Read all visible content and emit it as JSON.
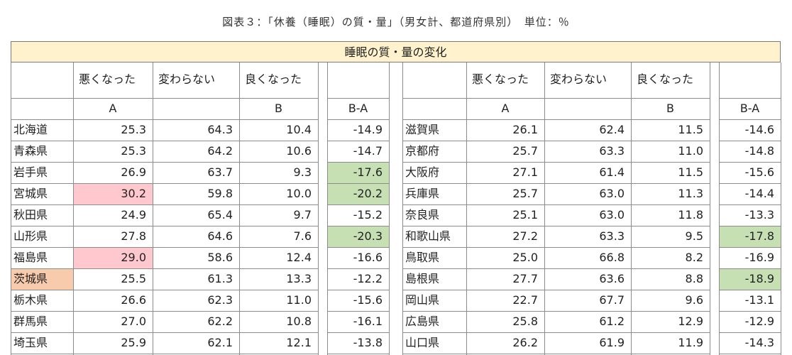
{
  "caption": "図表３：「休養（睡眠）の質・量」（男女計、都道府県別）　単位：％",
  "banner": "睡眠の質・量の変化",
  "headers": {
    "worse": "悪くなった",
    "same": "変わらない",
    "better": "良くなった",
    "a": "A",
    "b": "B",
    "ba": "B-A"
  },
  "left_rows": [
    {
      "pref": "北海道",
      "a": "25.3",
      "same": "64.3",
      "b": "10.4",
      "ba": "-14.9"
    },
    {
      "pref": "青森県",
      "a": "25.3",
      "same": "64.2",
      "b": "10.6",
      "ba": "-14.7"
    },
    {
      "pref": "岩手県",
      "a": "26.9",
      "same": "63.7",
      "b": "9.3",
      "ba": "-17.6"
    },
    {
      "pref": "宮城県",
      "a": "30.2",
      "same": "59.8",
      "b": "10.0",
      "ba": "-20.2"
    },
    {
      "pref": "秋田県",
      "a": "24.9",
      "same": "65.4",
      "b": "9.7",
      "ba": "-15.2"
    },
    {
      "pref": "山形県",
      "a": "27.8",
      "same": "64.6",
      "b": "7.6",
      "ba": "-20.3"
    },
    {
      "pref": "福島県",
      "a": "29.0",
      "same": "58.6",
      "b": "12.4",
      "ba": "-16.6"
    },
    {
      "pref": "茨城県",
      "a": "25.5",
      "same": "61.3",
      "b": "13.3",
      "ba": "-12.2"
    },
    {
      "pref": "栃木県",
      "a": "26.6",
      "same": "62.3",
      "b": "11.0",
      "ba": "-15.6"
    },
    {
      "pref": "群馬県",
      "a": "27.0",
      "same": "62.2",
      "b": "10.8",
      "ba": "-16.1"
    },
    {
      "pref": "埼玉県",
      "a": "25.9",
      "same": "62.1",
      "b": "12.1",
      "ba": "-13.8"
    }
  ],
  "right_rows": [
    {
      "pref": "滋賀県",
      "a": "26.1",
      "same": "62.4",
      "b": "11.5",
      "ba": "-14.6"
    },
    {
      "pref": "京都府",
      "a": "25.7",
      "same": "63.3",
      "b": "11.0",
      "ba": "-14.8"
    },
    {
      "pref": "大阪府",
      "a": "27.1",
      "same": "61.4",
      "b": "11.5",
      "ba": "-15.6"
    },
    {
      "pref": "兵庫県",
      "a": "25.7",
      "same": "63.0",
      "b": "11.3",
      "ba": "-14.4"
    },
    {
      "pref": "奈良県",
      "a": "25.1",
      "same": "63.0",
      "b": "11.8",
      "ba": "-13.3"
    },
    {
      "pref": "和歌山県",
      "a": "27.2",
      "same": "63.3",
      "b": "9.5",
      "ba": "-17.8"
    },
    {
      "pref": "鳥取県",
      "a": "25.0",
      "same": "66.8",
      "b": "8.2",
      "ba": "-16.9"
    },
    {
      "pref": "島根県",
      "a": "27.7",
      "same": "63.6",
      "b": "8.8",
      "ba": "-18.9"
    },
    {
      "pref": "岡山県",
      "a": "22.7",
      "same": "67.7",
      "b": "9.6",
      "ba": "-13.1"
    },
    {
      "pref": "広島県",
      "a": "25.8",
      "same": "61.2",
      "b": "12.9",
      "ba": "-12.9"
    },
    {
      "pref": "山口県",
      "a": "26.2",
      "same": "61.9",
      "b": "11.9",
      "ba": "-14.3"
    }
  ],
  "highlights": {
    "left": [
      {
        "row": 3,
        "col": "a",
        "tone": "red"
      },
      {
        "row": 6,
        "col": "a",
        "tone": "red"
      },
      {
        "row": 2,
        "col": "ba",
        "tone": "green"
      },
      {
        "row": 3,
        "col": "ba",
        "tone": "green"
      },
      {
        "row": 5,
        "col": "ba",
        "tone": "green"
      },
      {
        "row": 7,
        "col": "pref",
        "tone": "orange"
      }
    ],
    "right": [
      {
        "row": 5,
        "col": "ba",
        "tone": "green"
      },
      {
        "row": 7,
        "col": "ba",
        "tone": "green"
      }
    ]
  },
  "colors": {
    "banner": "#fff2cc",
    "red": "#ffc7ce",
    "green": "#c6e0b4",
    "orange": "#f8cbad"
  }
}
